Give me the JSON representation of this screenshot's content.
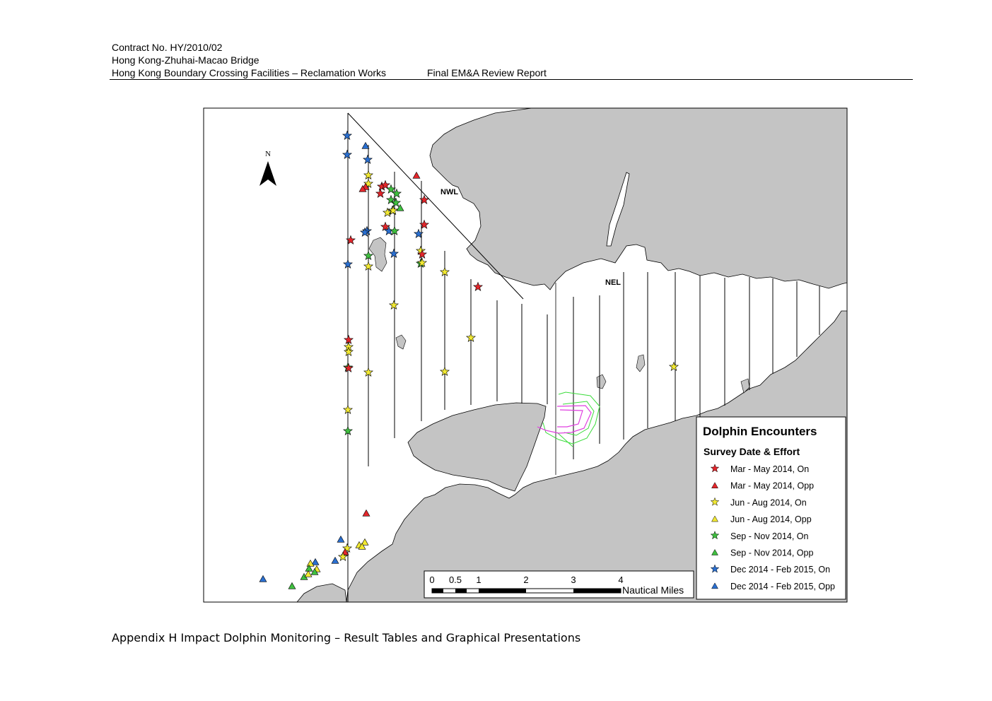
{
  "header": {
    "contract": "Contract No. HY/2010/02",
    "project": "Hong Kong-Zhuhai-Macao Bridge",
    "facility": "Hong Kong Boundary Crossing Facilities – Reclamation Works",
    "report": "Final EM&A Review Report"
  },
  "footer": "Appendix H Impact Dolphin Monitoring – Result Tables and Graphical Presentations",
  "map": {
    "north_label": "N",
    "area_labels": {
      "nwl": "NWL",
      "nel": "NEL"
    },
    "scale_bar": {
      "ticks": [
        "0",
        "0.5",
        "1",
        "2",
        "3",
        "4"
      ],
      "unit": "Nautical Miles"
    },
    "legend": {
      "title": "Dolphin Encounters",
      "subtitle": "Survey Date & Effort",
      "items": [
        {
          "label": "Mar - May 2014, On",
          "symbol": "star",
          "color": "#e3262b"
        },
        {
          "label": "Mar - May 2014, Opp",
          "symbol": "triangle",
          "color": "#e3262b"
        },
        {
          "label": "Jun - Aug 2014, On",
          "symbol": "star",
          "color": "#f1e832"
        },
        {
          "label": "Jun - Aug 2014, Opp",
          "symbol": "triangle",
          "color": "#f1e832"
        },
        {
          "label": "Sep - Nov 2014, On",
          "symbol": "star",
          "color": "#3fbf3f"
        },
        {
          "label": "Sep - Nov 2014, Opp",
          "symbol": "triangle",
          "color": "#3fbf3f"
        },
        {
          "label": "Dec 2014 - Feb 2015, On",
          "symbol": "star",
          "color": "#2a6fd0"
        },
        {
          "label": "Dec 2014 - Feb 2015, Opp",
          "symbol": "triangle",
          "color": "#2a6fd0"
        }
      ]
    },
    "colors": {
      "land": "#c4c4c4",
      "water": "#ffffff",
      "outline": "#000000",
      "works_green": "#3bdc3b",
      "works_magenta": "#e040e0"
    }
  }
}
